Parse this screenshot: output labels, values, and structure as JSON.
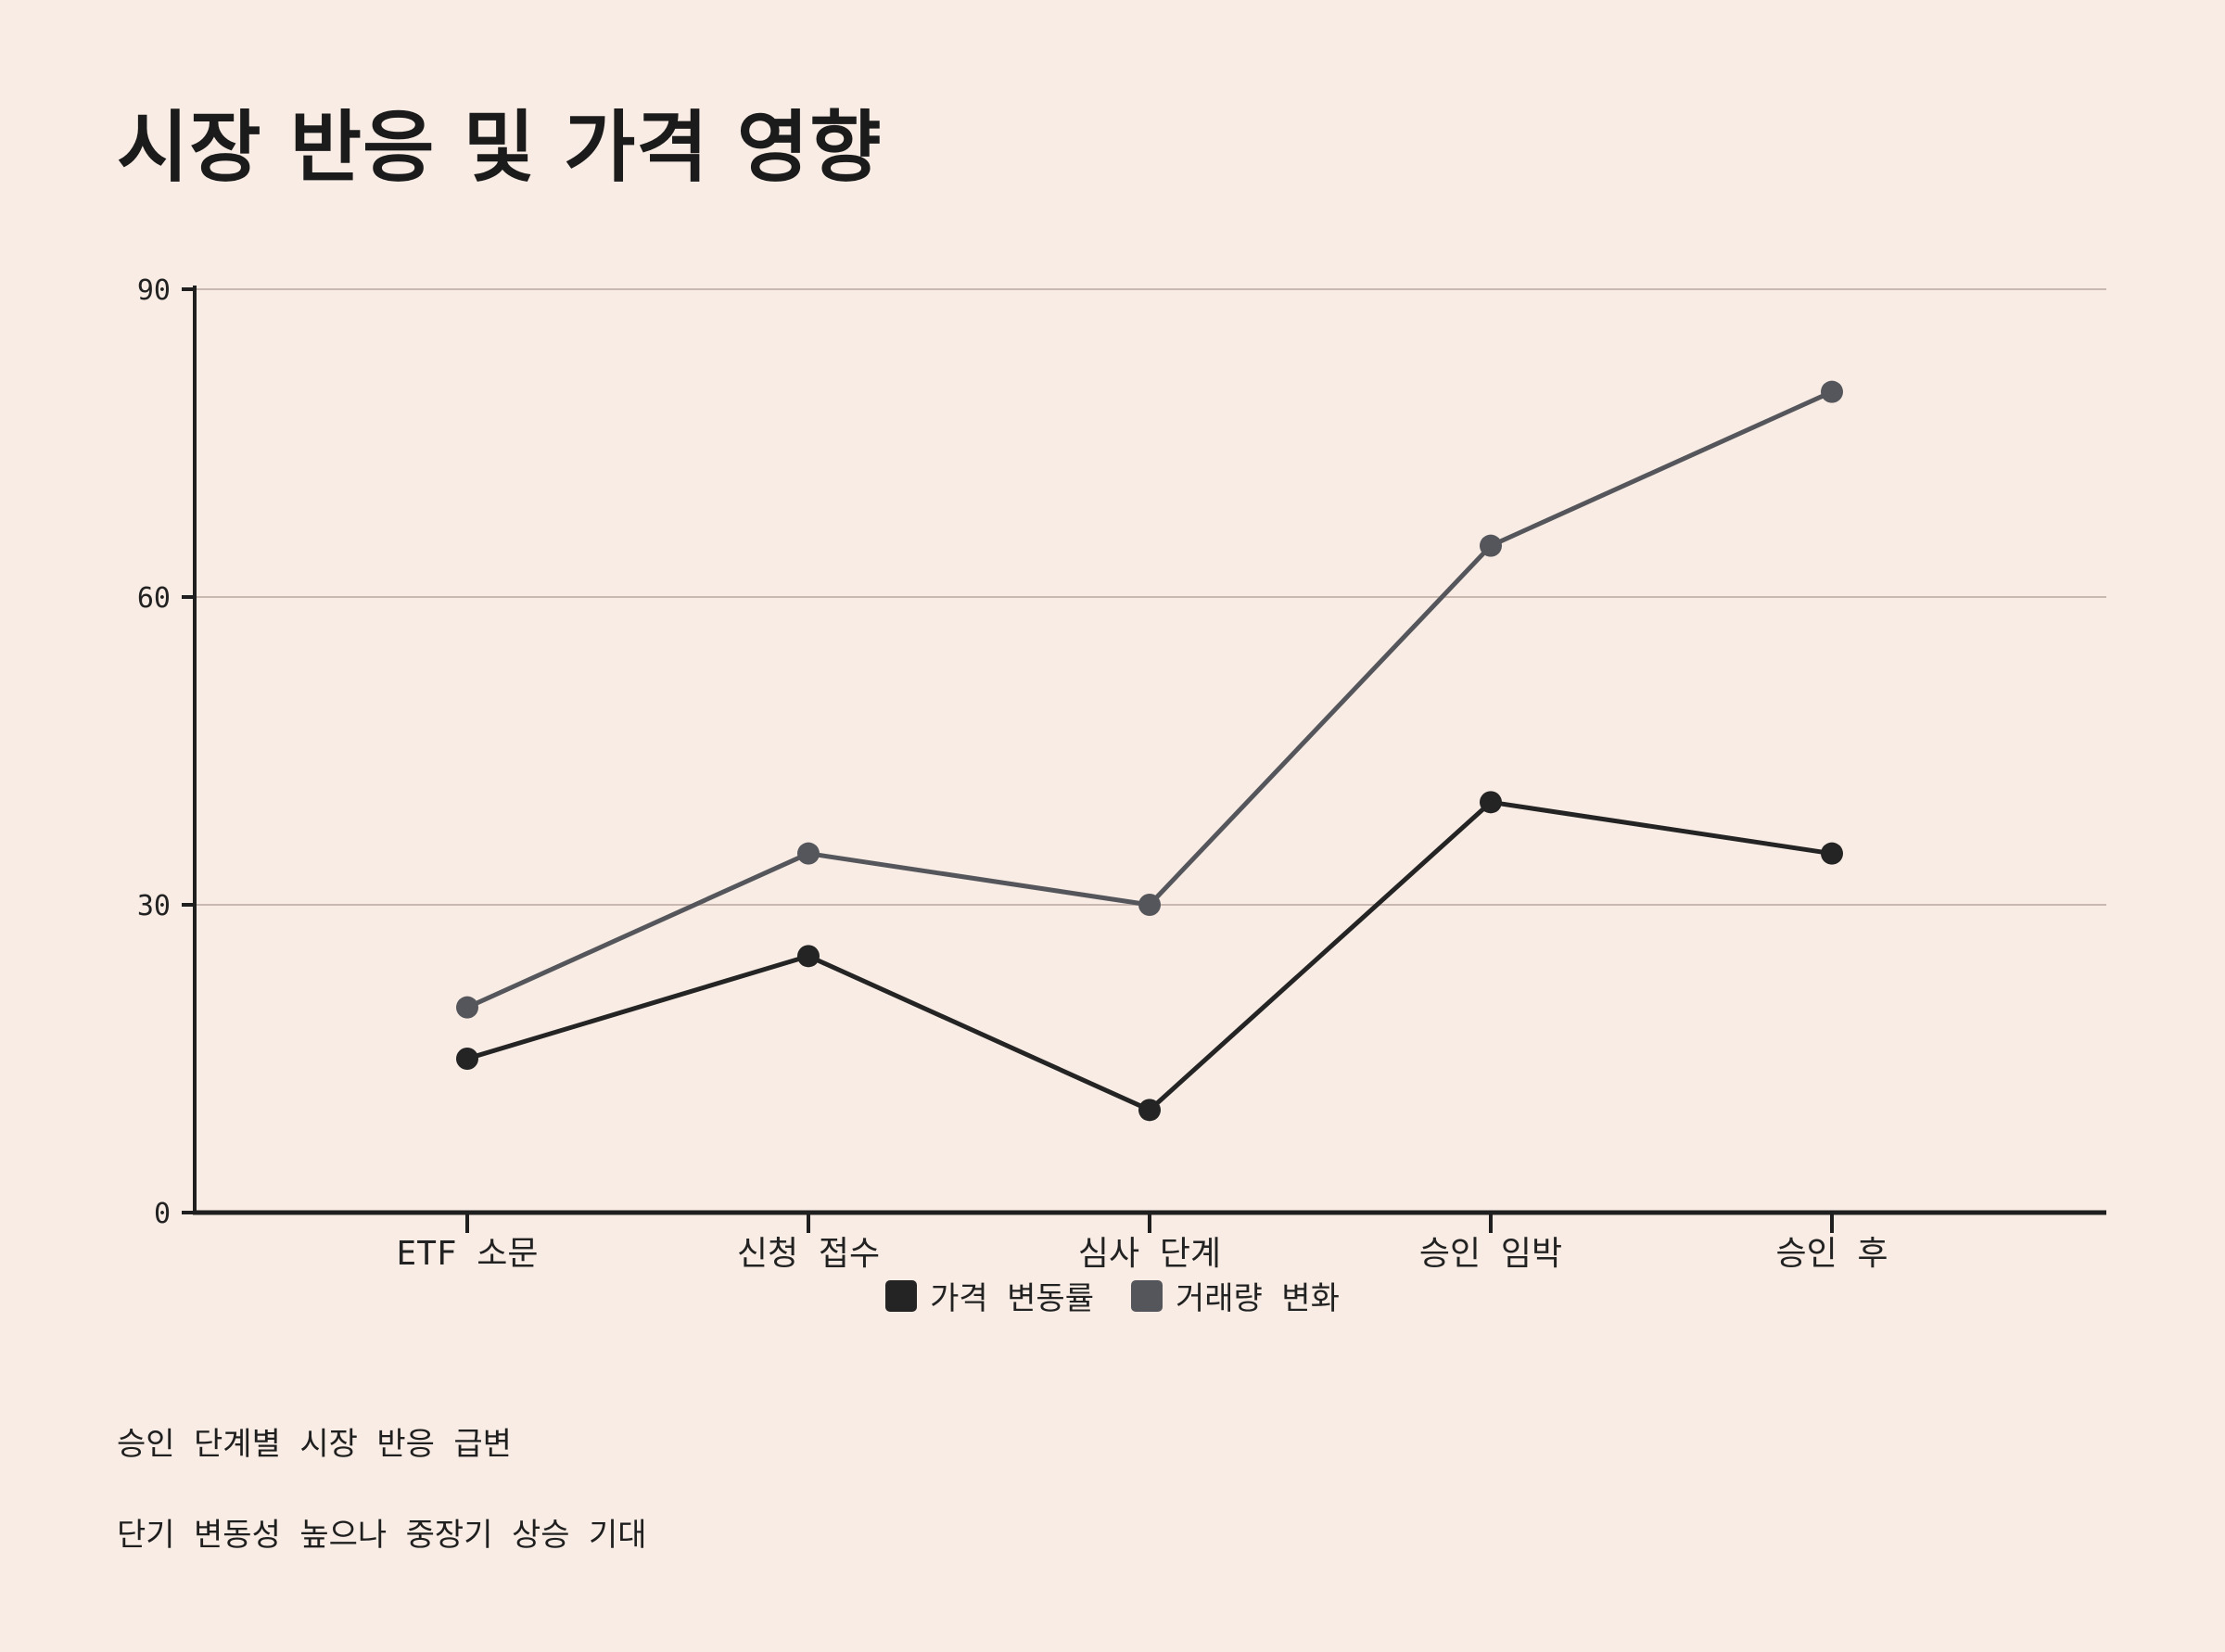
{
  "title": "시장 반응 및 가격 영향",
  "colors": {
    "background": "#f8ece4",
    "price_series": "#242424",
    "volume_series": "#55565b",
    "grid": "#c9b8b0",
    "axis": "#1f1f1f"
  },
  "chart_data": {
    "type": "line",
    "categories": [
      "ETF 소문",
      "신청 접수",
      "심사 단계",
      "승인 임박",
      "승인 후"
    ],
    "series": [
      {
        "name": "가격 변동률",
        "values": [
          15,
          25,
          10,
          40,
          35
        ],
        "color": "#242424"
      },
      {
        "name": "거래량 변화",
        "values": [
          20,
          35,
          30,
          65,
          80
        ],
        "color": "#55565b"
      }
    ],
    "y_ticks": [
      "0",
      "30",
      "60",
      "90"
    ],
    "ylim": [
      0,
      90
    ],
    "grid": true,
    "legend_position": "bottom-center"
  },
  "notes": [
    "승인 단계별 시장 반응 급변",
    "단기 변동성 높으나 중장기 상승 기대"
  ]
}
